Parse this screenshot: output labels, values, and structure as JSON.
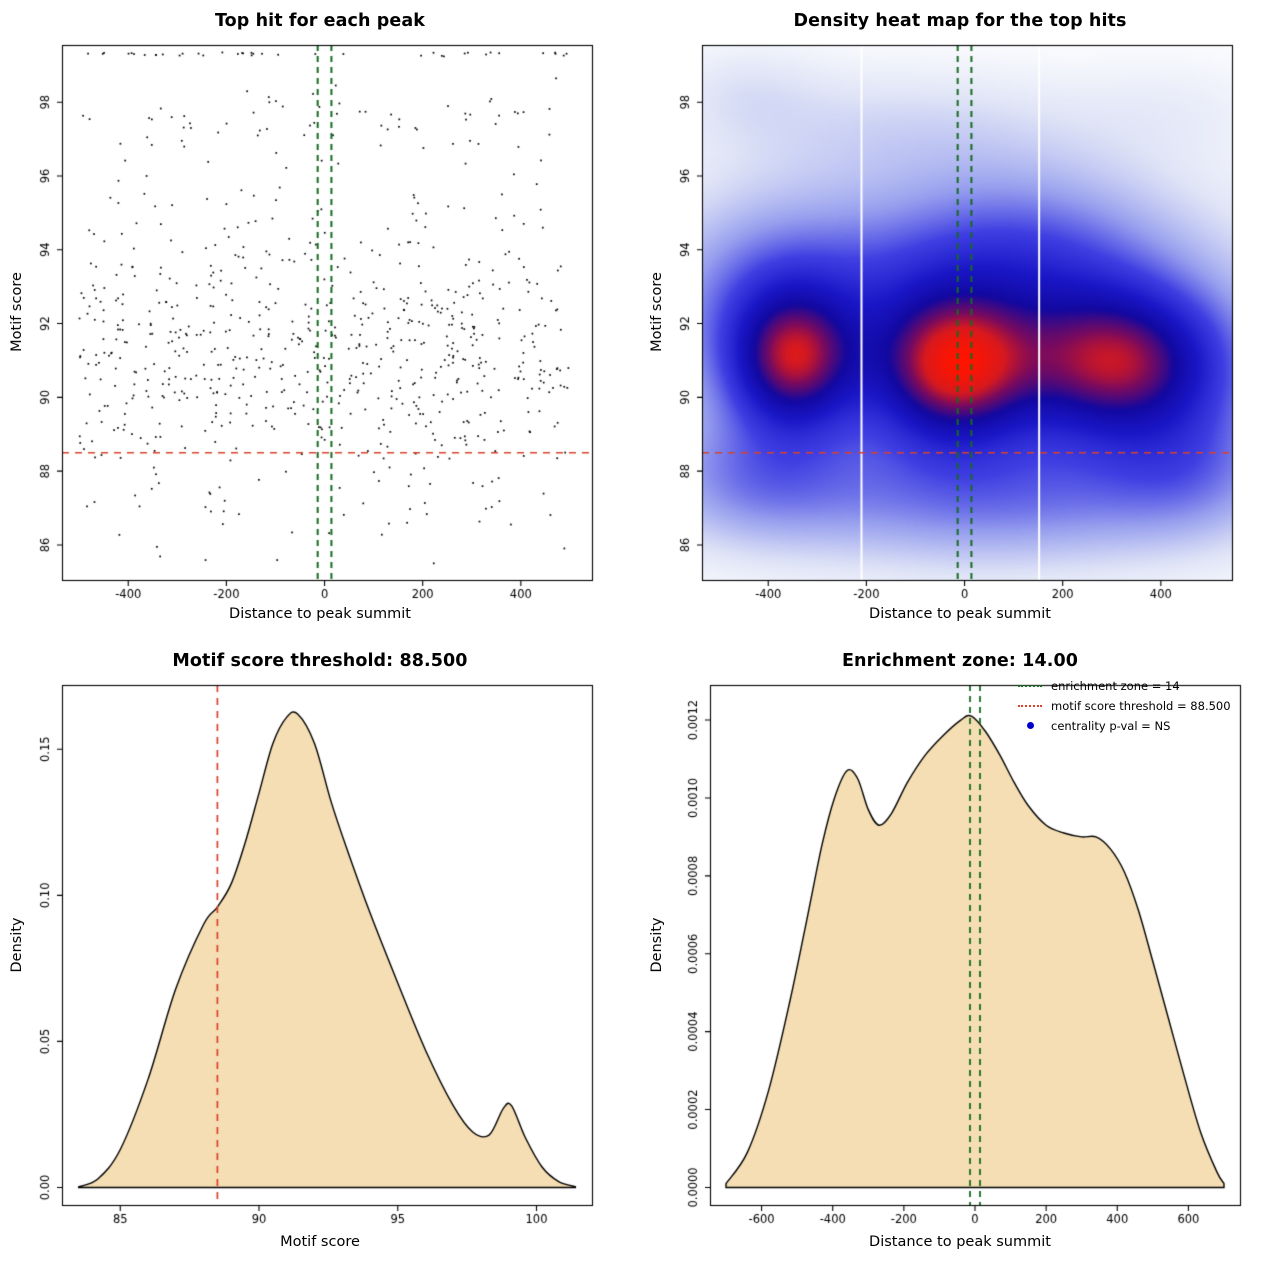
{
  "figure": {
    "background": "#ffffff"
  },
  "colors": {
    "point": "#000000",
    "threshold_line": "#d9422b",
    "zone_line": "#156b1f",
    "area_fill": "#f5deb3",
    "curve_stroke": "#000000",
    "legend_point": "#0000cd",
    "heat_white_line": "#ffffff"
  },
  "chart_data": [
    {
      "id": "top-hits-scatter",
      "type": "scatter",
      "title": "Top hit for each peak",
      "xlabel": "Distance to peak summit",
      "ylabel": "Motif score",
      "xlim": [
        -535,
        545
      ],
      "ylim": [
        85.05,
        99.55
      ],
      "xticks": [
        -400,
        -200,
        0,
        200,
        400
      ],
      "yticks": [
        86,
        88,
        90,
        92,
        94,
        96,
        98
      ],
      "grid": false,
      "points": {
        "n": 800,
        "seed": 20240421,
        "x_uniform": [
          -500,
          500
        ],
        "y_mixture": [
          {
            "w": 0.6,
            "mean": 91.0,
            "sd": 1.75
          },
          {
            "w": 0.22,
            "mean": 93.3,
            "sd": 2.5
          },
          {
            "w": 0.08,
            "mean": 97.5,
            "sd": 0.55
          },
          {
            "w": 0.06,
            "mean": 99.3,
            "sd": 0.03
          },
          {
            "w": 0.04,
            "mean": 87.0,
            "sd": 0.9
          }
        ],
        "y_range": [
          85.4,
          99.35
        ]
      },
      "threshold_y": 88.5,
      "zone_x": [
        -14,
        14
      ]
    },
    {
      "id": "top-hits-heatmap",
      "type": "heatmap",
      "title": "Density heat map for the top hits",
      "xlabel": "Distance to peak summit",
      "ylabel": "Motif score",
      "xlim": [
        -535,
        545
      ],
      "ylim": [
        85.05,
        99.55
      ],
      "xticks": [
        -400,
        -200,
        0,
        200,
        400
      ],
      "yticks": [
        86,
        88,
        90,
        92,
        94,
        96,
        98
      ],
      "gamma": 0.9,
      "blobs": [
        [
          -20,
          90.8,
          105,
          1.35,
          1.0
        ],
        [
          -350,
          91.0,
          85,
          1.25,
          0.92
        ],
        [
          320,
          90.9,
          140,
          1.35,
          0.95
        ],
        [
          0,
          91.3,
          430,
          2.6,
          0.52
        ],
        [
          -380,
          93.0,
          150,
          1.7,
          0.28
        ],
        [
          100,
          93.8,
          210,
          1.7,
          0.36
        ],
        [
          -140,
          97.3,
          260,
          1.15,
          0.13
        ],
        [
          -450,
          98.3,
          110,
          0.9,
          0.09
        ],
        [
          430,
          97.8,
          150,
          1.0,
          0.06
        ],
        [
          60,
          87.2,
          320,
          1.25,
          0.33
        ],
        [
          -430,
          87.8,
          140,
          1.2,
          0.27
        ],
        [
          460,
          88.2,
          130,
          1.3,
          0.27
        ]
      ],
      "colormap": [
        [
          0.0,
          255,
          255,
          255
        ],
        [
          0.1,
          222,
          227,
          246
        ],
        [
          0.25,
          150,
          158,
          238
        ],
        [
          0.4,
          62,
          62,
          226
        ],
        [
          0.55,
          25,
          22,
          198
        ],
        [
          0.68,
          18,
          8,
          160
        ],
        [
          0.8,
          120,
          10,
          95
        ],
        [
          0.89,
          215,
          25,
          30
        ],
        [
          1.0,
          255,
          20,
          0
        ]
      ],
      "white_lines_x": [
        -210,
        152
      ],
      "threshold_y": 88.5,
      "zone_x": [
        -14,
        14
      ]
    },
    {
      "id": "motif-score-density",
      "type": "area",
      "title": "Motif score threshold: 88.500",
      "xlabel": "Motif score",
      "ylabel": "Density",
      "xlim": [
        82.9,
        102.0
      ],
      "ylim": [
        -0.006,
        0.172
      ],
      "xticks": [
        85,
        90,
        95,
        100
      ],
      "yticks": [
        0,
        0.05,
        0.1,
        0.15
      ],
      "ytick_labels": [
        "0.00",
        "0.05",
        "0.10",
        "0.15"
      ],
      "threshold_x": 88.5,
      "curve": [
        [
          83.5,
          0.0002
        ],
        [
          84.2,
          0.003
        ],
        [
          85,
          0.013
        ],
        [
          86,
          0.037
        ],
        [
          87,
          0.068
        ],
        [
          88,
          0.09
        ],
        [
          88.5,
          0.096
        ],
        [
          89,
          0.104
        ],
        [
          89.5,
          0.118
        ],
        [
          90,
          0.135
        ],
        [
          90.5,
          0.152
        ],
        [
          91,
          0.161
        ],
        [
          91.4,
          0.162
        ],
        [
          92,
          0.152
        ],
        [
          92.6,
          0.132
        ],
        [
          93.2,
          0.115
        ],
        [
          94,
          0.094
        ],
        [
          95,
          0.07
        ],
        [
          96,
          0.047
        ],
        [
          97,
          0.028
        ],
        [
          97.7,
          0.019
        ],
        [
          98.3,
          0.018
        ],
        [
          98.8,
          0.027
        ],
        [
          99.1,
          0.028
        ],
        [
          99.6,
          0.017
        ],
        [
          100.2,
          0.007
        ],
        [
          100.8,
          0.002
        ],
        [
          101.4,
          0.0003
        ]
      ]
    },
    {
      "id": "distance-density",
      "type": "area",
      "title": "Enrichment zone: 14.00",
      "xlabel": "Distance to peak summit",
      "ylabel": "Density",
      "xlim": [
        -745,
        745
      ],
      "ylim": [
        -4.5e-05,
        0.00129
      ],
      "xticks": [
        -600,
        -400,
        -200,
        0,
        200,
        400,
        600
      ],
      "yticks": [
        0,
        0.0002,
        0.0004,
        0.0006,
        0.0008,
        0.001,
        0.0012
      ],
      "ytick_labels": [
        "0.0000",
        "0.0002",
        "0.0004",
        "0.0006",
        "0.0008",
        "0.0010",
        "0.0012"
      ],
      "zone_x": [
        -14,
        14
      ],
      "curve": [
        [
          -700,
          1e-05
        ],
        [
          -640,
          9e-05
        ],
        [
          -580,
          0.00025
        ],
        [
          -520,
          0.00048
        ],
        [
          -470,
          0.0007
        ],
        [
          -430,
          0.00088
        ],
        [
          -395,
          0.001
        ],
        [
          -360,
          0.00107
        ],
        [
          -330,
          0.00105
        ],
        [
          -300,
          0.00097
        ],
        [
          -270,
          0.00093
        ],
        [
          -235,
          0.00096
        ],
        [
          -190,
          0.00104
        ],
        [
          -140,
          0.00111
        ],
        [
          -90,
          0.00116
        ],
        [
          -40,
          0.0012
        ],
        [
          -10,
          0.00121
        ],
        [
          30,
          0.00117
        ],
        [
          70,
          0.00111
        ],
        [
          110,
          0.00104
        ],
        [
          150,
          0.00098
        ],
        [
          200,
          0.00093
        ],
        [
          250,
          0.00091
        ],
        [
          300,
          0.0009
        ],
        [
          340,
          0.0009
        ],
        [
          380,
          0.00087
        ],
        [
          420,
          0.00081
        ],
        [
          460,
          0.00071
        ],
        [
          500,
          0.00058
        ],
        [
          545,
          0.00043
        ],
        [
          590,
          0.00028
        ],
        [
          635,
          0.00014
        ],
        [
          680,
          4e-05
        ],
        [
          700,
          1e-05
        ]
      ],
      "legend": {
        "position": "top-right",
        "items": [
          {
            "label": "enrichment zone = 14",
            "swatch": "dotted-line",
            "color": "#156b1f"
          },
          {
            "label": "motif score threshold = 88.500",
            "swatch": "dotted-line",
            "color": "#d9422b"
          },
          {
            "label": "centrality p-val = NS",
            "swatch": "point",
            "color": "#0000cd"
          }
        ]
      }
    }
  ]
}
